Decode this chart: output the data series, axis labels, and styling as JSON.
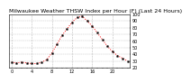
{
  "title": "Milwaukee Weather THSW Index per Hour (F) (Last 24 Hours)",
  "hours": [
    0,
    1,
    2,
    3,
    4,
    5,
    6,
    7,
    8,
    9,
    10,
    11,
    12,
    13,
    14,
    15,
    16,
    17,
    18,
    19,
    20,
    21,
    22,
    23
  ],
  "values": [
    28,
    27,
    28,
    27,
    26,
    26,
    28,
    32,
    42,
    55,
    68,
    78,
    88,
    95,
    97,
    90,
    82,
    72,
    62,
    52,
    44,
    38,
    34,
    30
  ],
  "line_color": "#ff0000",
  "marker_color": "#000000",
  "bg_color": "#ffffff",
  "grid_color": "#bbbbbb",
  "ylim_min": 20,
  "ylim_max": 100,
  "ytick_labels": [
    "100",
    "90",
    "80",
    "70",
    "60",
    "50",
    "40",
    "30",
    "20"
  ],
  "ytick_values": [
    100,
    90,
    80,
    70,
    60,
    50,
    40,
    30,
    20
  ],
  "title_fontsize": 4.5,
  "tick_fontsize": 3.5,
  "vgrid_hours": [
    0,
    4,
    8,
    12,
    16,
    20,
    24
  ]
}
